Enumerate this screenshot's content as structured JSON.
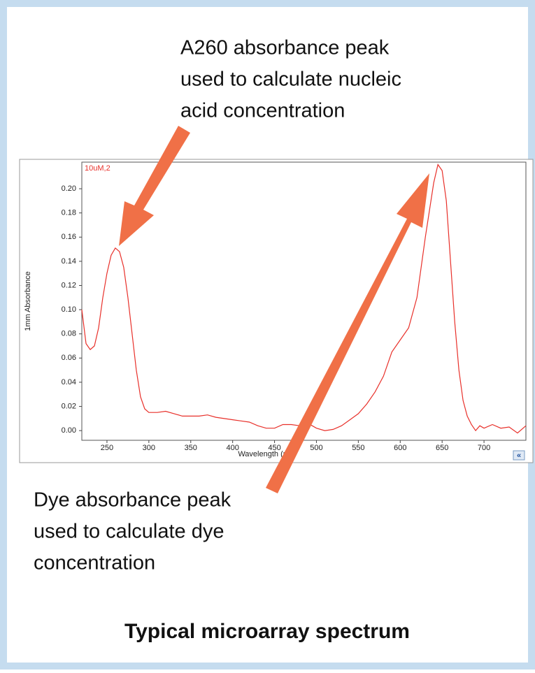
{
  "chart_data": {
    "type": "line",
    "title": "Typical microarray spectrum",
    "xlabel": "Wavelength (nm)",
    "ylabel": "1mm Absorbance",
    "annotations": [
      [
        "A260 absorbance peak",
        "used to calculate nucleic",
        "acid concentration"
      ],
      [
        "Dye absorbance peak",
        "used to calculate dye",
        "concentration"
      ]
    ],
    "x": [
      220,
      225,
      230,
      235,
      240,
      245,
      250,
      255,
      260,
      265,
      270,
      275,
      280,
      285,
      290,
      295,
      300,
      310,
      320,
      330,
      340,
      350,
      360,
      370,
      380,
      390,
      400,
      410,
      420,
      430,
      440,
      450,
      460,
      470,
      480,
      490,
      500,
      510,
      520,
      530,
      540,
      550,
      560,
      570,
      580,
      590,
      600,
      610,
      620,
      630,
      640,
      645,
      650,
      655,
      660,
      665,
      670,
      675,
      680,
      685,
      690,
      695,
      700,
      710,
      720,
      730,
      740,
      750
    ],
    "series": [
      {
        "name": "10uM,2",
        "color": "#e8302a",
        "values": [
          0.1,
          0.072,
          0.067,
          0.07,
          0.085,
          0.11,
          0.13,
          0.145,
          0.151,
          0.148,
          0.135,
          0.11,
          0.08,
          0.05,
          0.028,
          0.018,
          0.015,
          0.015,
          0.016,
          0.014,
          0.012,
          0.012,
          0.012,
          0.013,
          0.011,
          0.01,
          0.009,
          0.008,
          0.007,
          0.004,
          0.002,
          0.002,
          0.005,
          0.005,
          0.004,
          0.006,
          0.002,
          0.0,
          0.001,
          0.004,
          0.009,
          0.014,
          0.022,
          0.032,
          0.045,
          0.065,
          0.075,
          0.085,
          0.11,
          0.16,
          0.205,
          0.22,
          0.215,
          0.19,
          0.14,
          0.09,
          0.05,
          0.025,
          0.012,
          0.005,
          0.0,
          0.004,
          0.002,
          0.005,
          0.002,
          0.003,
          -0.002,
          0.004
        ]
      }
    ],
    "xlim": [
      220,
      750
    ],
    "ylim": [
      -0.008,
      0.222
    ],
    "xticks": [
      250,
      300,
      350,
      400,
      450,
      500,
      550,
      600,
      650,
      700
    ],
    "yticks": [
      {
        "value": 0,
        "label": "0.00"
      },
      {
        "value": 0.02,
        "label": "0.02"
      },
      {
        "value": 0.04,
        "label": "0.04"
      },
      {
        "value": 0.06,
        "label": "0.06"
      },
      {
        "value": 0.08,
        "label": "0.08"
      },
      {
        "value": 0.1,
        "label": "0.10"
      },
      {
        "value": 0.12,
        "label": "0.12"
      },
      {
        "value": 0.14,
        "label": "0.14"
      },
      {
        "value": 0.16,
        "label": "0.16"
      },
      {
        "value": 0.18,
        "label": "0.18"
      },
      {
        "value": 0.2,
        "label": "0.20"
      }
    ]
  }
}
